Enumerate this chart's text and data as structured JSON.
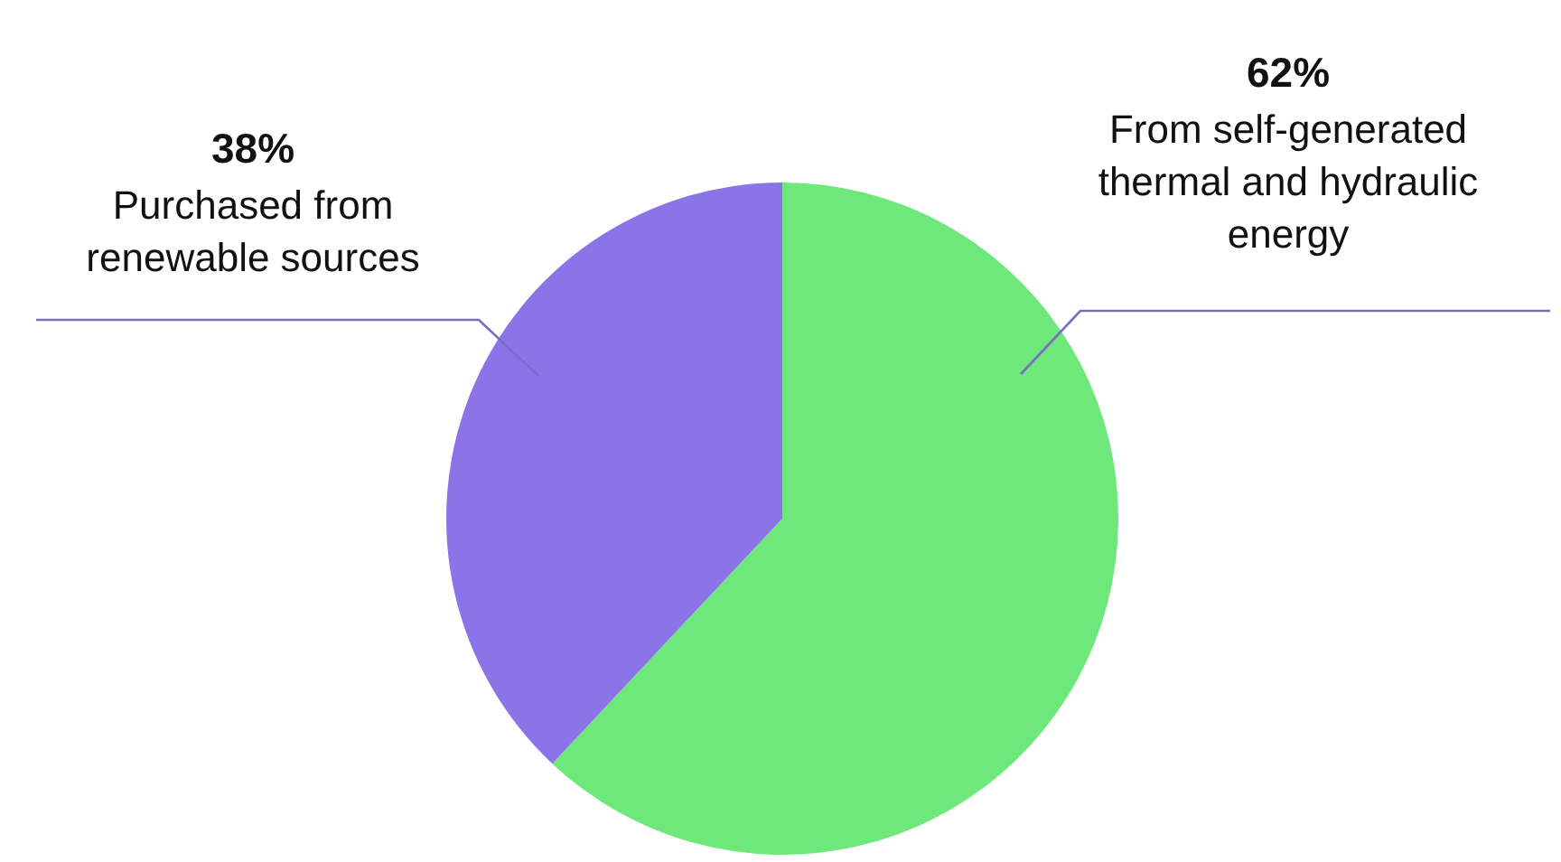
{
  "chart_data": {
    "type": "pie",
    "categories": [
      "From self-generated thermal and hydraulic energy",
      "Purchased from renewable sources"
    ],
    "values": [
      62,
      38
    ],
    "colors": [
      "#6ee87a",
      "#8b73e8"
    ],
    "value_labels": [
      "62%",
      "38%"
    ]
  }
}
